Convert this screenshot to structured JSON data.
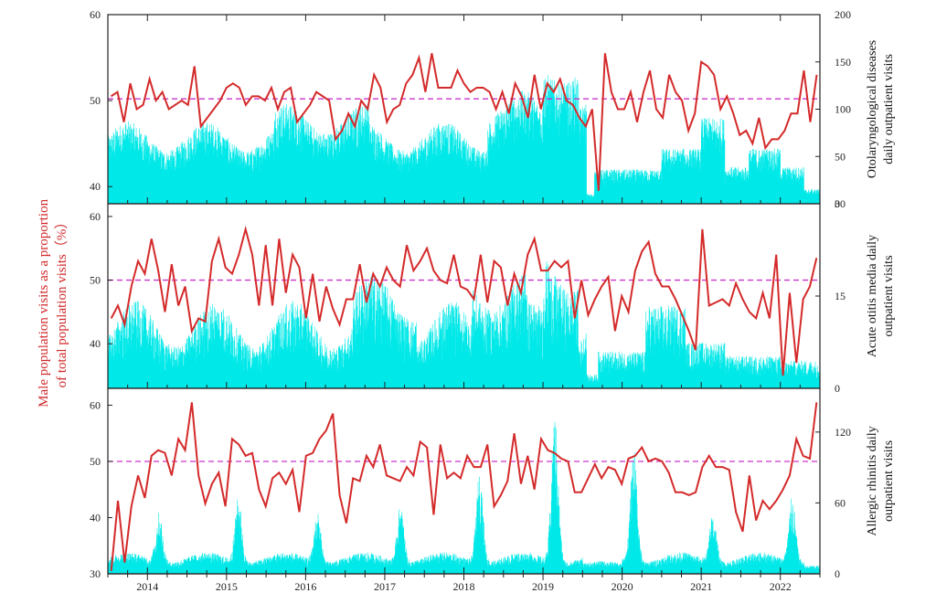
{
  "chart_data": {
    "type": "bar+line",
    "shared_x": {
      "unit": "year",
      "range": [
        2013.5,
        2022.5
      ],
      "tick_labels": [
        "2014",
        "2015",
        "2016",
        "2017",
        "2018",
        "2019",
        "2020",
        "2021",
        "2022"
      ]
    },
    "left_ylabel": "Male population visits as a proportion of total population visits（%）",
    "colors": {
      "bars": "#00e8e8",
      "line": "#d42a2a",
      "reference": "#cc33cc"
    },
    "panels": [
      {
        "name": "otolaryngological",
        "right_ylabel_line1": "Otolaryngological diseases",
        "right_ylabel_line2": "daily outpatient visits",
        "left_ylim": [
          38,
          60
        ],
        "left_ticks": [
          40,
          50,
          60
        ],
        "right_ylim": [
          0,
          200
        ],
        "right_ticks": [
          0,
          50,
          100,
          150,
          200
        ],
        "reference_line": 50.2,
        "monthly_male_pct": [
          50.5,
          51.0,
          47.5,
          52.0,
          49.0,
          49.5,
          52.5,
          50.0,
          51.0,
          49.0,
          49.5,
          50.0,
          49.5,
          54.0,
          47.0,
          48.0,
          49.0,
          50.0,
          51.5,
          52.0,
          51.5,
          49.5,
          50.5,
          50.5,
          50.0,
          51.5,
          49.0,
          51.0,
          51.5,
          47.5,
          48.5,
          49.5,
          51.0,
          50.5,
          50.0,
          45.5,
          46.5,
          48.5,
          47.0,
          50.0,
          49.0,
          53.0,
          51.5,
          47.5,
          49.0,
          49.5,
          52.0,
          53.0,
          55.0,
          51.0,
          55.5,
          51.5,
          51.5,
          51.5,
          53.5,
          52.0,
          51.0,
          51.5,
          51.5,
          51.0,
          49.0,
          51.0,
          48.5,
          52.0,
          50.5,
          48.0,
          53.0,
          49.0,
          52.0,
          51.0,
          52.5,
          50.0,
          49.5,
          48.0,
          47.0,
          49.0,
          39.5,
          55.5,
          51.0,
          49.0,
          49.0,
          51.0,
          47.5,
          51.0,
          53.5,
          49.0,
          48.0,
          53.0,
          51.0,
          50.0,
          46.5,
          48.5,
          54.5,
          54.0,
          53.0,
          49.0,
          50.5,
          48.5,
          46.0,
          46.5,
          45.0,
          48.0,
          44.5,
          45.5,
          45.5,
          46.5,
          48.5,
          48.5,
          53.5,
          47.5,
          53.0
        ],
        "bar_description": "Daily visits, mostly 40 to 90; low near zero in early 2020; peak about 140 in early 2019"
      },
      {
        "name": "acute-otitis-media",
        "right_ylabel_line1": "Acute otitis media daily",
        "right_ylabel_line2": "outpatient visits",
        "left_ylim": [
          33,
          62
        ],
        "left_ticks": [
          40,
          50,
          60
        ],
        "right_ylim": [
          0,
          30
        ],
        "right_ticks": [
          0,
          15,
          30
        ],
        "reference_line": 50.0,
        "monthly_male_pct": [
          44.0,
          46.0,
          43.0,
          49.0,
          53.0,
          51.0,
          56.5,
          51.5,
          45.0,
          52.5,
          46.0,
          49.0,
          42.0,
          44.0,
          43.5,
          53.0,
          56.5,
          52.0,
          51.0,
          54.0,
          58.0,
          54.0,
          46.0,
          55.5,
          46.0,
          56.5,
          48.0,
          54.0,
          52.0,
          44.0,
          51.0,
          43.5,
          49.0,
          45.5,
          43.0,
          47.0,
          47.0,
          52.5,
          46.5,
          51.0,
          49.0,
          52.0,
          50.0,
          49.0,
          55.5,
          51.5,
          53.0,
          55.0,
          51.5,
          50.0,
          49.5,
          54.0,
          49.0,
          48.5,
          47.0,
          54.0,
          46.5,
          53.0,
          52.0,
          46.0,
          51.0,
          48.0,
          54.0,
          56.5,
          51.5,
          51.5,
          53.0,
          52.0,
          53.0,
          44.0,
          50.0,
          44.5,
          47.0,
          49.0,
          50.5,
          42.0,
          47.5,
          45.0,
          51.5,
          54.5,
          56.0,
          51.0,
          49.0,
          49.0,
          47.0,
          44.5,
          42.0,
          39.0,
          58.0,
          46.0,
          46.5,
          47.0,
          46.0,
          49.5,
          47.0,
          45.0,
          44.0,
          48.0,
          44.0,
          54.0,
          35.0,
          48.0,
          37.0,
          47.0,
          49.0,
          53.5
        ],
        "bar_description": "Daily visits, mostly 4 to 14; peak about 22 in mid-2019"
      },
      {
        "name": "allergic-rhinitis",
        "right_ylabel_line1": "Allergic rhinitis daily",
        "right_ylabel_line2": "outpatient visits",
        "left_ylim": [
          30,
          63
        ],
        "left_ticks": [
          30,
          40,
          50,
          60
        ],
        "right_ylim": [
          0,
          157
        ],
        "right_ticks": [
          0,
          60,
          120
        ],
        "reference_line": 50.0,
        "monthly_male_pct": [
          30.5,
          43.0,
          32.0,
          42.0,
          47.5,
          43.5,
          51.0,
          52.0,
          51.5,
          47.5,
          54.0,
          52.0,
          60.5,
          47.5,
          42.5,
          46.0,
          48.0,
          42.0,
          54.0,
          53.0,
          51.0,
          51.5,
          45.0,
          42.0,
          47.0,
          48.0,
          46.0,
          48.5,
          41.0,
          51.0,
          51.5,
          54.0,
          55.5,
          58.5,
          44.0,
          39.0,
          47.0,
          46.5,
          51.0,
          49.0,
          53.0,
          47.5,
          47.0,
          46.5,
          49.0,
          47.5,
          53.5,
          52.5,
          40.5,
          53.0,
          47.0,
          48.0,
          47.0,
          51.0,
          49.0,
          49.0,
          53.0,
          42.0,
          44.0,
          46.5,
          55.0,
          46.0,
          51.0,
          45.0,
          54.0,
          52.0,
          51.5,
          50.5,
          50.0,
          44.5,
          44.5,
          47.0,
          49.5,
          47.0,
          49.0,
          48.5,
          46.0,
          50.5,
          51.0,
          52.5,
          50.0,
          50.5,
          50.0,
          48.0,
          44.5,
          44.5,
          44.0,
          44.5,
          49.0,
          51.0,
          49.0,
          49.0,
          48.5,
          41.0,
          37.5,
          47.5,
          39.5,
          43.0,
          41.5,
          43.0,
          45.0,
          47.5,
          54.0,
          51.0,
          50.5,
          60.5
        ],
        "bar_description": "Daily visits, baseline about 5 to 15 with seasonal spikes up to about 150 in early 2019"
      }
    ]
  }
}
